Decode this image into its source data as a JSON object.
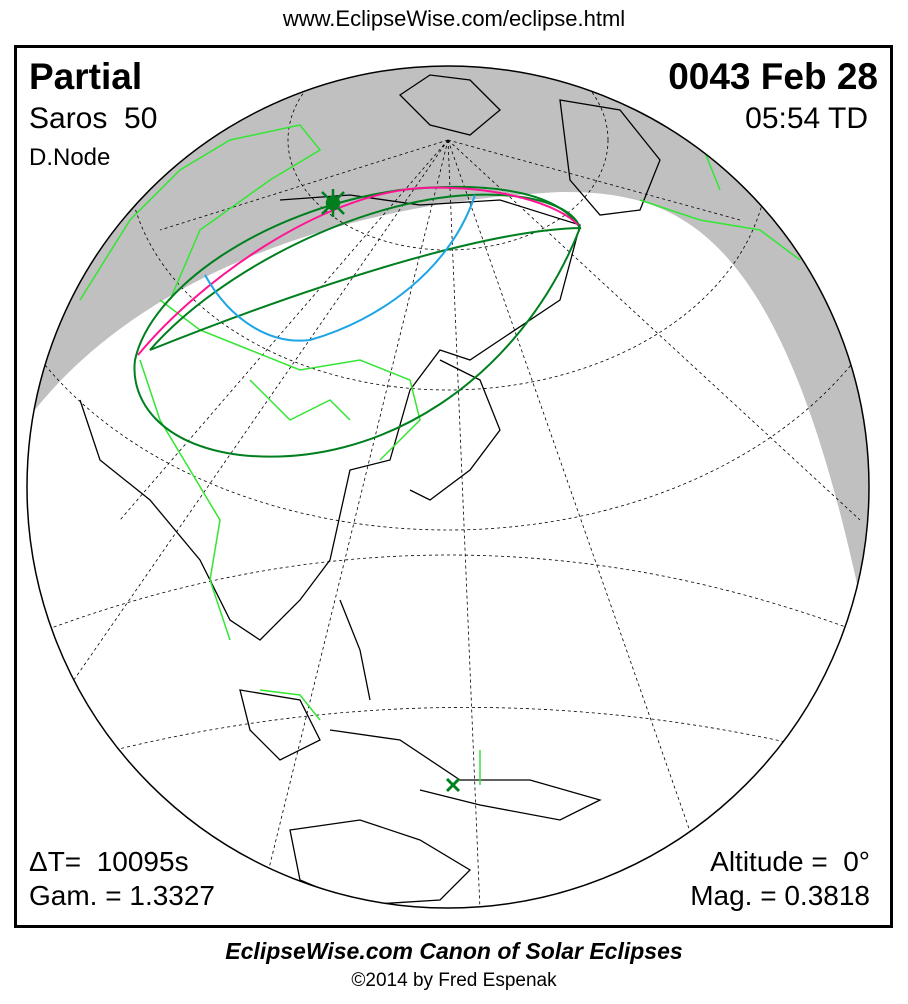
{
  "header": {
    "url": "www.EclipseWise.com/eclipse.html"
  },
  "eclipse": {
    "type": "Partial",
    "saros": "Saros  50",
    "node": "D.Node",
    "date": "0043 Feb 28",
    "time": "05:54 TD",
    "delta_t": "ΔT=  10095s",
    "gamma": "Gam. = 1.3327",
    "altitude": "Altitude =  0°",
    "magnitude": "Mag. = 0.3818"
  },
  "footer": {
    "canon": "EclipseWise.com Canon of Solar Eclipses",
    "copyright": "©2014 by Fred Espenak"
  },
  "colors": {
    "night": "#c0c0c0",
    "penumbra_limit": "#007f1f",
    "max_eclipse_line": "#ff1493",
    "sunrise_curve": "#1ea5e6",
    "borders": "#33e633",
    "coastlines": "#000000"
  },
  "markers": {
    "greatest_eclipse": "star-marker-icon",
    "subsolar_point": "x-marker-icon"
  }
}
